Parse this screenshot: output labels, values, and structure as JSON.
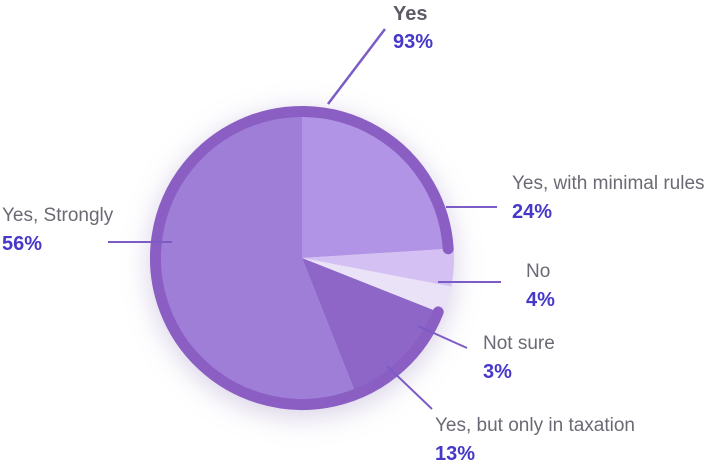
{
  "chart_data": {
    "type": "pie",
    "title": "",
    "unit": "%",
    "direction": "clockwise",
    "start_angle_deg": 0,
    "legend_position": "callouts-around-pie",
    "slices": [
      {
        "label": "Yes, with minimal rules",
        "value": 24,
        "pct": "24%",
        "color": "#b294e7"
      },
      {
        "label": "No",
        "value": 4,
        "pct": "4%",
        "color": "#d5c0f4"
      },
      {
        "label": "Not sure",
        "value": 3,
        "pct": "3%",
        "color": "#eae3f8"
      },
      {
        "label": "Yes, but only in taxation",
        "value": 13,
        "pct": "13%",
        "color": "#8e66c8"
      },
      {
        "label": "Yes, Strongly",
        "value": 56,
        "pct": "56%",
        "color": "#9f7ed7"
      }
    ],
    "total_arc": {
      "label": "Yes",
      "value": 93,
      "pct": "93%",
      "color": "#8a5ec3",
      "covers": [
        "Yes, but only in taxation",
        "Yes, Strongly",
        "Yes, with minimal rules"
      ]
    },
    "colors": {
      "label_text": "#6b6a74",
      "percent_text": "#4638c8",
      "leader_line": "#7b5cc6",
      "background": "#ffffff"
    }
  }
}
